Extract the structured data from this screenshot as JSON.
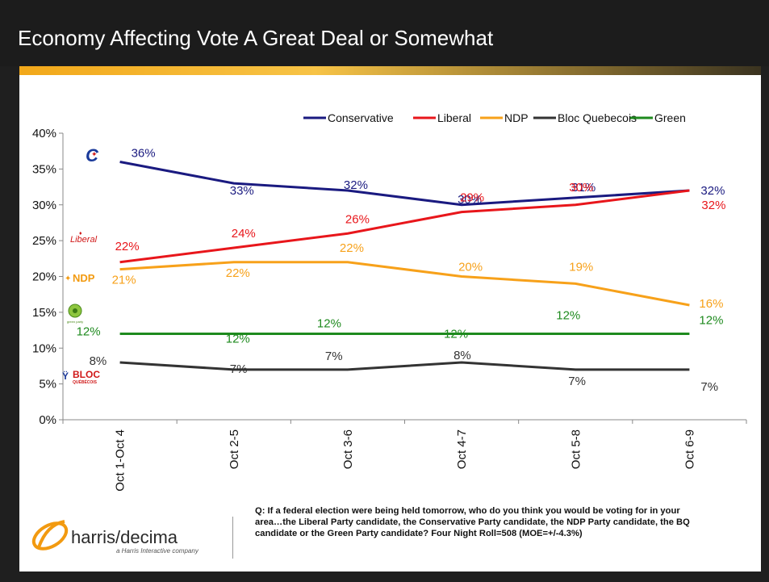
{
  "slide": {
    "title": "Economy Affecting Vote A Great Deal or Somewhat",
    "question": "Q: If a federal election were being held tomorrow, who do you think you would be voting for in your area…the Liberal Party candidate, the Conservative Party candidate, the NDP Party candidate, the BQ candidate or the Green Party candidate? Four Night Roll=508 (MOE=+/-4.3%)",
    "brand": {
      "name": "harris/decima",
      "tagline": "a Harris Interactive company"
    },
    "party_logos": {
      "liberal": "Liberal",
      "ndp": "NDP",
      "bloc_top": "BLOC",
      "bloc_bottom": "QUÉBÉCOIS",
      "green": "green party"
    }
  },
  "colors": {
    "background": "#1f1f1f",
    "accent": "#f2a81a",
    "conservative": "#1a1a80",
    "liberal": "#e8161b",
    "ndp": "#f7a11a",
    "bloc": "#333333",
    "green": "#1e8a1e"
  },
  "chart_data": {
    "type": "line",
    "categories": [
      "Oct 1-Oct 4",
      "Oct 2-5",
      "Oct 3-6",
      "Oct 4-7",
      "Oct 5-8",
      "Oct 6-9"
    ],
    "ylim": [
      0,
      40
    ],
    "yticks": [
      "0%",
      "5%",
      "10%",
      "15%",
      "20%",
      "25%",
      "30%",
      "35%",
      "40%"
    ],
    "legend_position": "top-right",
    "grid": false,
    "series": [
      {
        "name": "Conservative",
        "color": "#1a1a80",
        "values": [
          36,
          33,
          32,
          30,
          31,
          32
        ],
        "labels": [
          "36%",
          "33%",
          "32%",
          "30%",
          "31%",
          "32%"
        ]
      },
      {
        "name": "Liberal",
        "color": "#e8161b",
        "values": [
          22,
          24,
          26,
          29,
          30,
          32
        ],
        "labels": [
          "22%",
          "24%",
          "26%",
          "29%",
          "30%",
          "32%"
        ]
      },
      {
        "name": "NDP",
        "color": "#f7a11a",
        "values": [
          21,
          22,
          22,
          20,
          19,
          16
        ],
        "labels": [
          "21%",
          "22%",
          "22%",
          "20%",
          "19%",
          "16%"
        ]
      },
      {
        "name": "Bloc Quebecois",
        "color": "#333333",
        "values": [
          8,
          7,
          7,
          8,
          7,
          7
        ],
        "labels": [
          "8%",
          "7%",
          "7%",
          "8%",
          "7%",
          "7%"
        ]
      },
      {
        "name": "Green",
        "color": "#1e8a1e",
        "values": [
          12,
          12,
          12,
          12,
          12,
          12
        ],
        "labels": [
          "12%",
          "12%",
          "12%",
          "12%",
          "12%",
          "12%"
        ]
      }
    ]
  }
}
